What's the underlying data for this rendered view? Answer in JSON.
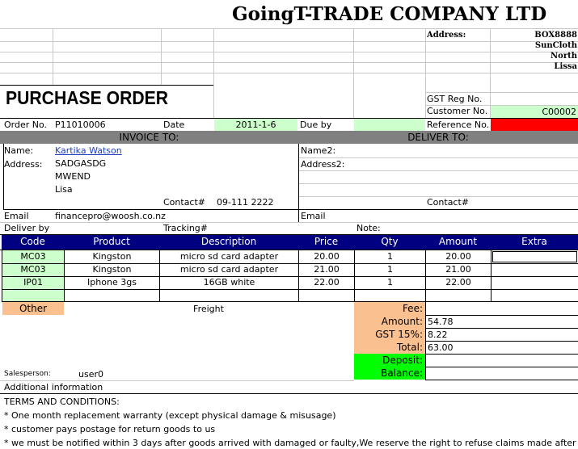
{
  "company": {
    "name": "GoingT-TRADE COMPANY LTD",
    "address_label": "Address:",
    "address_lines": [
      "BOX8888",
      "SunCloth",
      "North",
      "Lissa"
    ]
  },
  "doc": {
    "title": "PURCHASE ORDER",
    "gst_reg_label": "GST Reg No.",
    "customer_no_label": "Customer No.",
    "customer_no": "C00002",
    "order_no_label": "Order No.",
    "order_no": "P11010006",
    "date_label": "Date",
    "date": "2011-1-6",
    "due_by_label": "Due by",
    "reference_label": "Reference No."
  },
  "invoice": {
    "header": "INVOICE TO:",
    "name_label": "Name:",
    "name": "Kartika Watson",
    "address_label": "Address:",
    "address_lines": [
      "SADGASDG",
      "MWEND",
      "Lisa"
    ],
    "contact_label": "Contact#",
    "contact": "09-111 2222",
    "email_label": "Email",
    "email": "financepro@woosh.co.nz"
  },
  "deliver": {
    "header": "DELIVER TO:",
    "name2_label": "Name2:",
    "address2_label": "Address2:",
    "contact_label": "Contact#",
    "email_label": "Email"
  },
  "shipping": {
    "deliver_by_label": "Deliver by",
    "tracking_label": "Tracking#",
    "note_label": "Note:"
  },
  "table": {
    "columns": [
      "Code",
      "Product",
      "Description",
      "Price",
      "Qty",
      "Amount",
      "Extra"
    ],
    "rows": [
      {
        "code": "MC03",
        "product": "Kingston",
        "description": "micro sd card adapter",
        "price": "20.00",
        "qty": "1",
        "amount": "20.00"
      },
      {
        "code": "MC03",
        "product": "Kingston",
        "description": "micro sd card adapter",
        "price": "21.00",
        "qty": "1",
        "amount": "21.00"
      },
      {
        "code": "IP01",
        "product": "Iphone 3gs",
        "description": "16GB white",
        "price": "22.00",
        "qty": "1",
        "amount": "22.00"
      }
    ]
  },
  "summary": {
    "other_label": "Other",
    "freight_label": "Freight",
    "fee_label": "Fee:",
    "amount_label": "Amount:",
    "amount": "54.78",
    "gst_label": "GST 15%:",
    "gst": "8.22",
    "total_label": "Total:",
    "total": "63.00",
    "deposit_label": "Deposit:",
    "balance_label": "Balance:"
  },
  "footer": {
    "salesperson_label": "Salesperson:",
    "salesperson": "user0",
    "additional_label": "Additional information",
    "terms_title": "TERMS AND CONDITIONS:",
    "terms": [
      "* One month replacement  warranty (except physical damage & misusage)",
      "* customer pays postage for return goods to us",
      "* we must be notified within 3 days after goods arrived with damaged or faulty,We reserve the right to refuse claims made after"
    ]
  },
  "colors": {
    "header_navy": "#000080",
    "section_gray": "#808080",
    "light_green": "#ccffcc",
    "peach": "#fac090",
    "bright_green": "#00ff00",
    "red": "#ff0000"
  }
}
